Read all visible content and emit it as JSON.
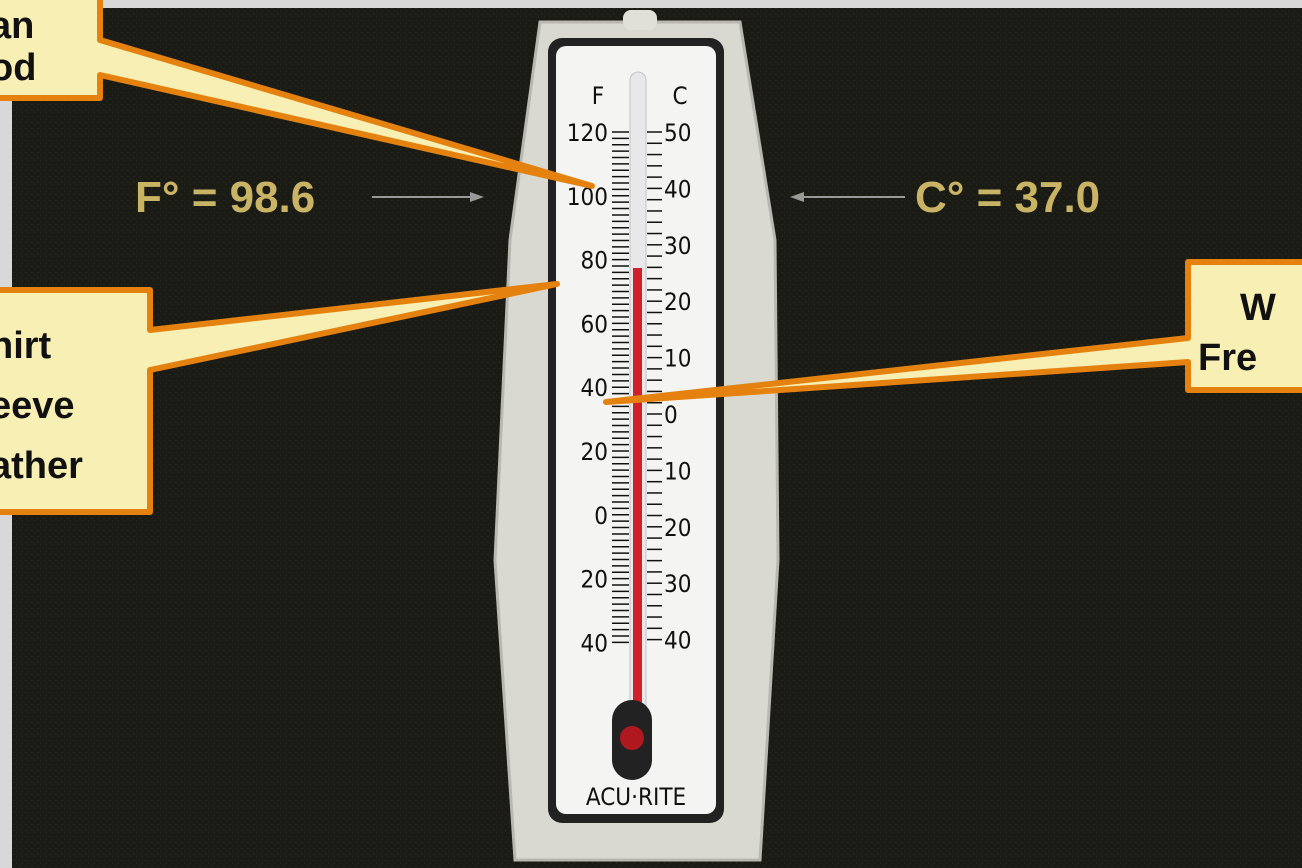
{
  "callouts": [
    {
      "lines": [
        "an",
        "od"
      ]
    },
    {
      "lines": [
        "hirt",
        "eeve",
        "ather"
      ]
    },
    {
      "lines": [
        "W",
        "Fre"
      ]
    }
  ],
  "readings": {
    "fahrenheit": "F° = 98.6",
    "celsius": "C° = 37.0"
  },
  "thermometer": {
    "f_header": "F",
    "c_header": "C",
    "f_scale": [
      "120",
      "100",
      "80",
      "60",
      "40",
      "20",
      "0",
      "20",
      "40"
    ],
    "c_scale": [
      "50",
      "40",
      "30",
      "20",
      "10",
      "0",
      "10",
      "20",
      "30",
      "40"
    ],
    "brand": "ACU·RITE"
  }
}
